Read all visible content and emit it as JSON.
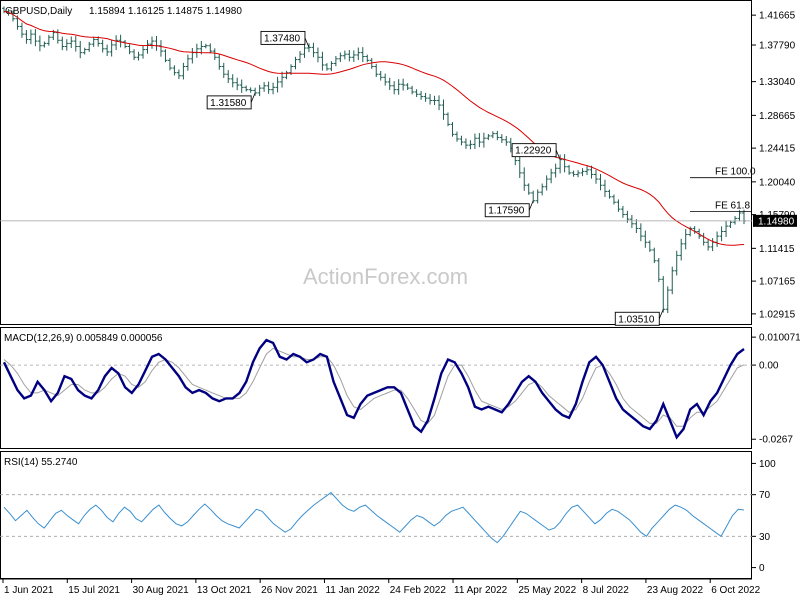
{
  "header": {
    "symbol": "GBPUSD,Daily",
    "ohlc": "1.15894 1.16125 1.14875 1.14980"
  },
  "watermark": "ActionForex.com",
  "colors": {
    "bar": "#1f5d52",
    "ma": "#d90000",
    "macd": "#000080",
    "signal": "#a0a0a0",
    "rsi": "#3a8fd0",
    "grid": "#a0a0a0"
  },
  "chart_data": [
    {
      "type": "ohlc",
      "name": "price",
      "x_labels": [
        "1 Jun 2021",
        "15 Jul 2021",
        "30 Aug 2021",
        "13 Oct 2021",
        "26 Nov 2021",
        "11 Jan 2022",
        "24 Feb 2022",
        "11 Apr 2022",
        "25 May 2022",
        "8 Jul 2022",
        "23 Aug 2022",
        "6 Oct 2022"
      ],
      "y_ticks": [
        "1.41665",
        "1.37790",
        "1.33040",
        "1.28665",
        "1.24415",
        "1.20040",
        "1.15790",
        "1.11415",
        "1.07165",
        "1.02915"
      ],
      "ylim": [
        1.016,
        1.435
      ],
      "last_price_label": "1.14980",
      "last_price": 1.1498,
      "closes": [
        1.4215,
        1.419,
        1.412,
        1.402,
        1.392,
        1.385,
        1.392,
        1.383,
        1.377,
        1.38,
        1.388,
        1.394,
        1.384,
        1.376,
        1.38,
        1.383,
        1.376,
        1.368,
        1.372,
        1.379,
        1.385,
        1.38,
        1.373,
        1.369,
        1.378,
        1.384,
        1.382,
        1.376,
        1.369,
        1.362,
        1.365,
        1.372,
        1.379,
        1.383,
        1.377,
        1.37,
        1.358,
        1.348,
        1.342,
        1.338,
        1.35,
        1.36,
        1.368,
        1.373,
        1.376,
        1.377,
        1.37,
        1.362,
        1.35,
        1.34,
        1.334,
        1.329,
        1.326,
        1.323,
        1.32,
        1.319,
        1.3158,
        1.322,
        1.325,
        1.32,
        1.323,
        1.33,
        1.336,
        1.342,
        1.35,
        1.359,
        1.366,
        1.374,
        1.3748,
        1.368,
        1.362,
        1.352,
        1.347,
        1.354,
        1.36,
        1.364,
        1.366,
        1.362,
        1.365,
        1.368,
        1.363,
        1.358,
        1.35,
        1.34,
        1.336,
        1.33,
        1.325,
        1.32,
        1.327,
        1.326,
        1.322,
        1.317,
        1.314,
        1.311,
        1.309,
        1.306,
        1.306,
        1.3,
        1.288,
        1.275,
        1.262,
        1.256,
        1.252,
        1.248,
        1.249,
        1.257,
        1.252,
        1.257,
        1.26,
        1.263,
        1.258,
        1.255,
        1.252,
        1.244,
        1.228,
        1.212,
        1.196,
        1.186,
        1.1759,
        1.187,
        1.194,
        1.204,
        1.212,
        1.218,
        1.2292,
        1.22,
        1.212,
        1.21,
        1.212,
        1.214,
        1.216,
        1.21,
        1.204,
        1.196,
        1.188,
        1.181,
        1.174,
        1.165,
        1.158,
        1.152,
        1.146,
        1.14,
        1.13,
        1.122,
        1.112,
        1.098,
        1.074,
        1.0351,
        1.06,
        1.085,
        1.105,
        1.12,
        1.132,
        1.14,
        1.136,
        1.13,
        1.122,
        1.116,
        1.122,
        1.13,
        1.136,
        1.143,
        1.148,
        1.153,
        1.16,
        1.1498
      ],
      "ma_span": 50,
      "annotations": [
        {
          "text": "1.37480",
          "x": 1.3748,
          "y": 1.3748,
          "kind": "high"
        },
        {
          "text": "1.31580",
          "x": 1.3158,
          "y": 1.3158,
          "kind": "low"
        },
        {
          "text": "1.22920",
          "x": 1.2292,
          "y": 1.2292,
          "kind": "high"
        },
        {
          "text": "1.17590",
          "x": 1.1759,
          "y": 1.1759,
          "kind": "low"
        },
        {
          "text": "1.03510",
          "x": 1.0351,
          "y": 1.0351,
          "kind": "low"
        }
      ],
      "levels": [
        {
          "text": "FE 100.0",
          "value": 1.2058
        },
        {
          "text": "FE 61.8",
          "value": 1.1621
        }
      ]
    },
    {
      "type": "line",
      "name": "macd",
      "label": "MACD(12,26,9) 0.005849 0.000056",
      "y_ticks": [
        "0.010071",
        "0.00",
        "-0.0267"
      ],
      "ylim": [
        -0.0295,
        0.013
      ],
      "series": [
        {
          "values": [
            0.001,
            -0.004,
            -0.009,
            -0.012,
            -0.011,
            -0.006,
            -0.009,
            -0.013,
            -0.01,
            -0.004,
            -0.005,
            -0.009,
            -0.011,
            -0.012,
            -0.009,
            -0.004,
            -0.001,
            -0.003,
            -0.008,
            -0.01,
            -0.007,
            -0.002,
            0.003,
            0.004,
            0.002,
            -0.001,
            -0.004,
            -0.008,
            -0.01,
            -0.009,
            -0.01,
            -0.012,
            -0.013,
            -0.012,
            -0.012,
            -0.01,
            -0.006,
            0.001,
            0.006,
            0.009,
            0.008,
            0.003,
            0.002,
            0.004,
            0.003,
            0.001,
            0.002,
            0.004,
            0.003,
            -0.006,
            -0.012,
            -0.018,
            -0.019,
            -0.014,
            -0.011,
            -0.01,
            -0.009,
            -0.008,
            -0.008,
            -0.01,
            -0.016,
            -0.022,
            -0.024,
            -0.02,
            -0.012,
            -0.003,
            0.002,
            0.001,
            -0.003,
            -0.008,
            -0.015,
            -0.016,
            -0.015,
            -0.016,
            -0.017,
            -0.014,
            -0.01,
            -0.006,
            -0.004,
            -0.006,
            -0.01,
            -0.013,
            -0.016,
            -0.018,
            -0.019,
            -0.014,
            -0.006,
            0.001,
            0.003,
            0.0,
            -0.006,
            -0.012,
            -0.016,
            -0.018,
            -0.02,
            -0.022,
            -0.023,
            -0.02,
            -0.014,
            -0.02,
            -0.026,
            -0.023,
            -0.016,
            -0.014,
            -0.018,
            -0.013,
            -0.01,
            -0.005,
            0.0,
            0.004,
            0.0058
          ],
          "name": ""
        },
        {
          "values": [
            0.002,
            0.0,
            -0.003,
            -0.007,
            -0.01,
            -0.01,
            -0.009,
            -0.01,
            -0.011,
            -0.009,
            -0.007,
            -0.007,
            -0.009,
            -0.01,
            -0.01,
            -0.008,
            -0.005,
            -0.003,
            -0.004,
            -0.007,
            -0.008,
            -0.006,
            -0.002,
            0.001,
            0.002,
            0.001,
            -0.001,
            -0.004,
            -0.007,
            -0.008,
            -0.009,
            -0.01,
            -0.011,
            -0.012,
            -0.012,
            -0.012,
            -0.01,
            -0.006,
            -0.001,
            0.004,
            0.006,
            0.005,
            0.004,
            0.003,
            0.003,
            0.002,
            0.002,
            0.003,
            0.003,
            0.0,
            -0.005,
            -0.011,
            -0.015,
            -0.016,
            -0.014,
            -0.012,
            -0.011,
            -0.01,
            -0.009,
            -0.009,
            -0.012,
            -0.016,
            -0.02,
            -0.021,
            -0.018,
            -0.011,
            -0.004,
            0.0,
            0.0,
            -0.004,
            -0.009,
            -0.013,
            -0.014,
            -0.015,
            -0.016,
            -0.015,
            -0.013,
            -0.01,
            -0.007,
            -0.006,
            -0.008,
            -0.011,
            -0.013,
            -0.015,
            -0.017,
            -0.016,
            -0.012,
            -0.006,
            -0.001,
            0.0,
            -0.003,
            -0.007,
            -0.012,
            -0.015,
            -0.017,
            -0.019,
            -0.021,
            -0.021,
            -0.018,
            -0.019,
            -0.022,
            -0.022,
            -0.019,
            -0.017,
            -0.017,
            -0.015,
            -0.013,
            -0.009,
            -0.005,
            -0.001,
            0.0001
          ],
          "name": ""
        }
      ]
    },
    {
      "type": "line",
      "name": "rsi",
      "label": "RSI(14) 55.2740",
      "y_ticks": [
        "100",
        "70",
        "30",
        "0"
      ],
      "ylim": [
        0,
        100
      ],
      "levels": [
        70,
        30
      ],
      "values": [
        58,
        52,
        45,
        50,
        55,
        48,
        42,
        38,
        45,
        52,
        55,
        50,
        46,
        42,
        50,
        56,
        60,
        55,
        48,
        44,
        52,
        58,
        54,
        47,
        44,
        50,
        56,
        60,
        53,
        47,
        42,
        40,
        44,
        50,
        56,
        61,
        56,
        50,
        45,
        42,
        40,
        38,
        44,
        50,
        56,
        54,
        48,
        42,
        38,
        34,
        37,
        44,
        50,
        55,
        60,
        64,
        68,
        72,
        66,
        60,
        56,
        54,
        58,
        60,
        55,
        50,
        46,
        42,
        38,
        34,
        40,
        46,
        50,
        48,
        44,
        40,
        44,
        50,
        54,
        56,
        58,
        52,
        46,
        40,
        34,
        28,
        24,
        30,
        38,
        46,
        54,
        52,
        48,
        44,
        40,
        36,
        38,
        44,
        52,
        58,
        60,
        54,
        48,
        42,
        46,
        52,
        56,
        54,
        50,
        46,
        40,
        34,
        30,
        38,
        44,
        50,
        56,
        60,
        58,
        55,
        50,
        46,
        42,
        38,
        34,
        30,
        40,
        50,
        56,
        55.274
      ]
    }
  ]
}
